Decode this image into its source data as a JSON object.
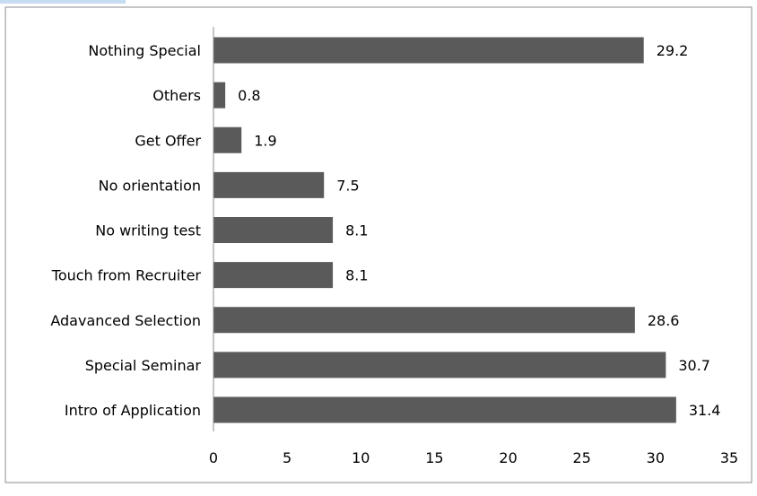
{
  "chart_data": {
    "type": "bar",
    "orientation": "horizontal",
    "categories": [
      "Nothing Special",
      "Others",
      "Get Offer",
      "No orientation",
      "No writing test",
      "Touch from Recruiter",
      "Adavanced Selection",
      "Special Seminar",
      "Intro of Application"
    ],
    "values": [
      29.2,
      0.8,
      1.9,
      7.5,
      8.1,
      8.1,
      28.6,
      30.7,
      31.4
    ],
    "value_labels": [
      "29.2",
      "0.8",
      "1.9",
      "7.5",
      "8.1",
      "8.1",
      "28.6",
      "30.7",
      "31.4"
    ],
    "xlim": [
      0,
      35
    ],
    "x_ticks": [
      "0",
      "5",
      "10",
      "15",
      "20",
      "25",
      "30",
      "35"
    ],
    "grid": false,
    "legend": "none",
    "bar_color": "#5a5a5a",
    "frame_color": "#8c8c8c",
    "accent_color": "#c6dcf0"
  }
}
